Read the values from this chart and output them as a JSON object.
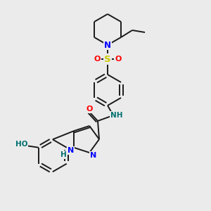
{
  "background_color": "#ebebeb",
  "bond_color": "#1a1a1a",
  "atom_colors": {
    "N": "#0000ff",
    "O": "#ff0000",
    "S": "#cccc00",
    "HO": "#007070",
    "NH": "#007070",
    "C": "#1a1a1a"
  },
  "figsize": [
    3.0,
    3.0
  ],
  "dpi": 100
}
